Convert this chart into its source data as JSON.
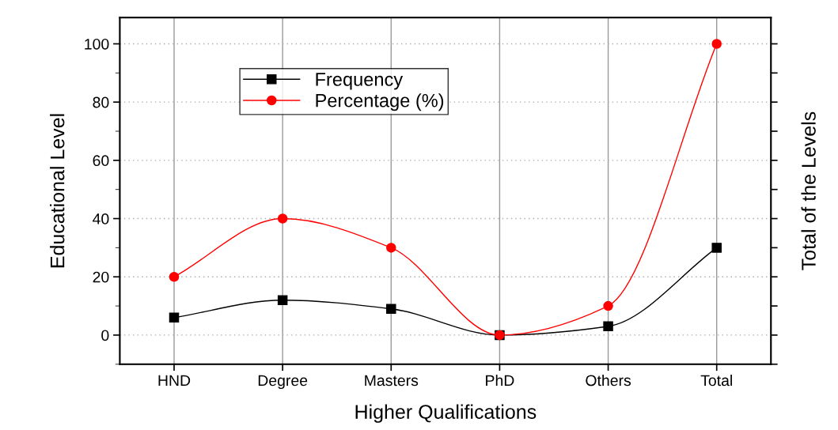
{
  "chart_data": {
    "type": "line",
    "categories": [
      "HND",
      "Degree",
      "Masters",
      "PhD",
      "Others",
      "Total"
    ],
    "series": [
      {
        "name": "Frequency",
        "color": "#000000",
        "marker": "square",
        "values": [
          6,
          12,
          9,
          0,
          3,
          30
        ]
      },
      {
        "name": "Percentage (%)",
        "color": "#ff0000",
        "marker": "circle",
        "values": [
          20,
          40,
          30,
          0,
          10,
          100
        ]
      }
    ],
    "xlabel": "Higher Qualifications",
    "ylabel": "Educational Level",
    "y2label": "Total of the Levels",
    "ylim": [
      -10,
      109
    ],
    "yticks": [
      0,
      20,
      40,
      60,
      80,
      100
    ],
    "grid": true,
    "legend": "top left",
    "line_style": "solid"
  }
}
